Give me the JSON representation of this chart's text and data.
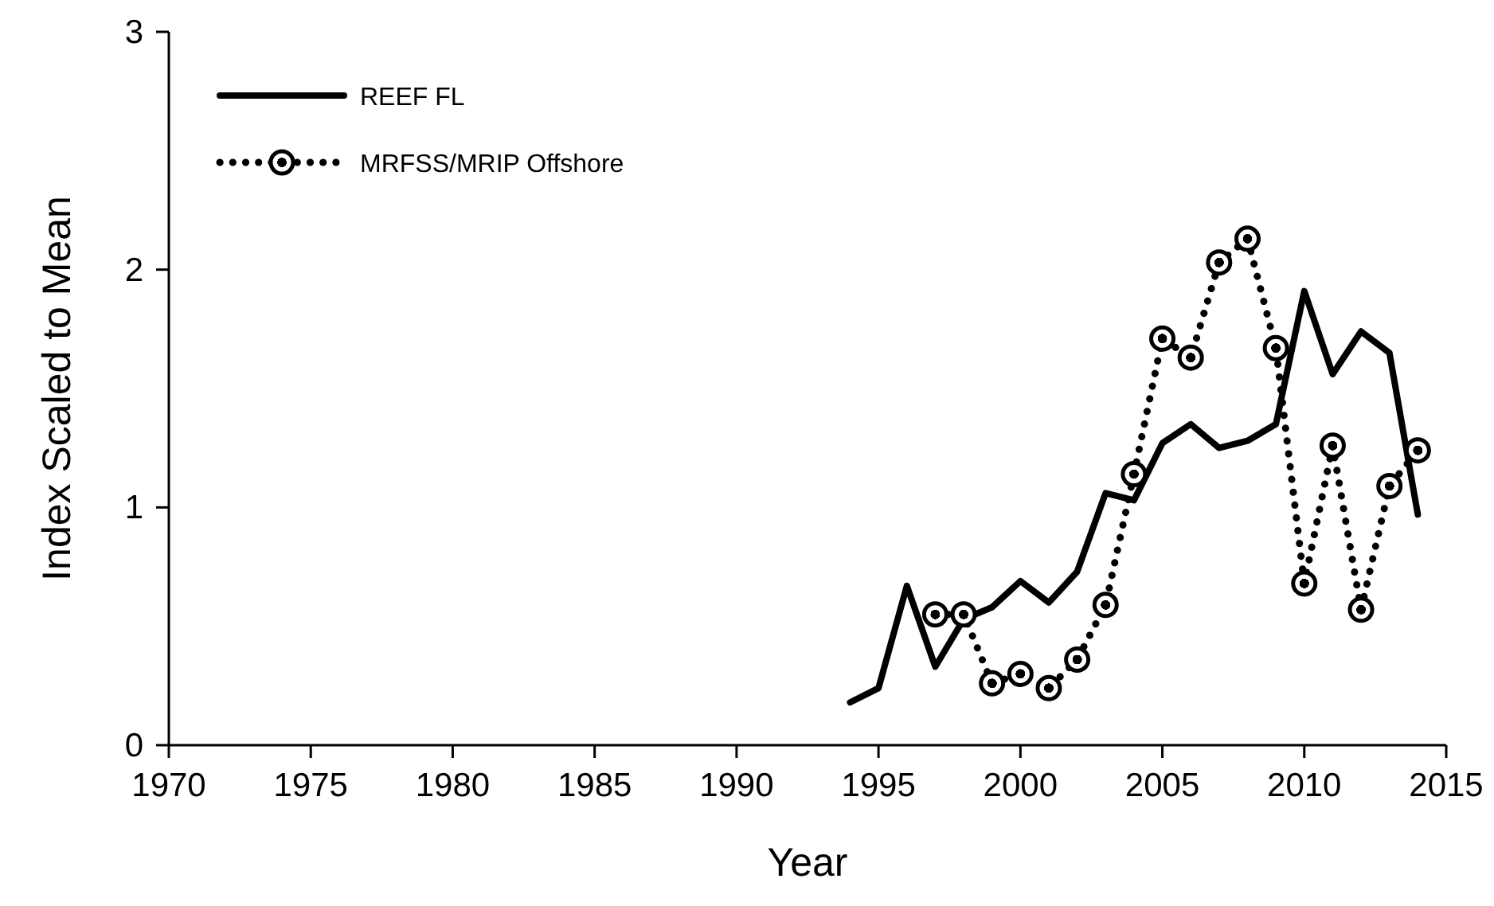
{
  "chart_data": {
    "type": "line",
    "xlabel": "Year",
    "ylabel": "Index Scaled to Mean",
    "xlim": [
      1970,
      2015
    ],
    "xticks": [
      1970,
      1975,
      1980,
      1985,
      1990,
      1995,
      2000,
      2005,
      2010,
      2015
    ],
    "ylim": [
      0,
      3
    ],
    "yticks": [
      0,
      1,
      2,
      3
    ],
    "grid": false,
    "legend": "top left",
    "series": [
      {
        "name": "REEF FL",
        "color": "#000000",
        "line_style": "solid",
        "marker": "none",
        "x": [
          1994,
          1995,
          1996,
          1997,
          1998,
          1999,
          2000,
          2001,
          2002,
          2003,
          2004,
          2005,
          2006,
          2007,
          2008,
          2009,
          2010,
          2011,
          2012,
          2013,
          2014
        ],
        "values": [
          0.18,
          0.24,
          0.67,
          0.33,
          0.53,
          0.58,
          0.69,
          0.6,
          0.73,
          1.06,
          1.03,
          1.27,
          1.35,
          1.25,
          1.28,
          1.35,
          1.91,
          1.56,
          1.74,
          1.65,
          0.97
        ]
      },
      {
        "name": "MRFSS/MRIP Offshore",
        "color": "#000000",
        "line_style": "dotted",
        "marker": "circle",
        "x": [
          1997,
          1998,
          1999,
          2000,
          2001,
          2002,
          2003,
          2004,
          2005,
          2006,
          2007,
          2008,
          2009,
          2010,
          2011,
          2012,
          2013,
          2014
        ],
        "values": [
          0.55,
          0.55,
          0.26,
          0.3,
          0.24,
          0.36,
          0.59,
          1.14,
          1.71,
          1.63,
          2.03,
          2.13,
          1.67,
          0.68,
          1.26,
          0.57,
          1.09,
          1.24
        ]
      }
    ]
  }
}
